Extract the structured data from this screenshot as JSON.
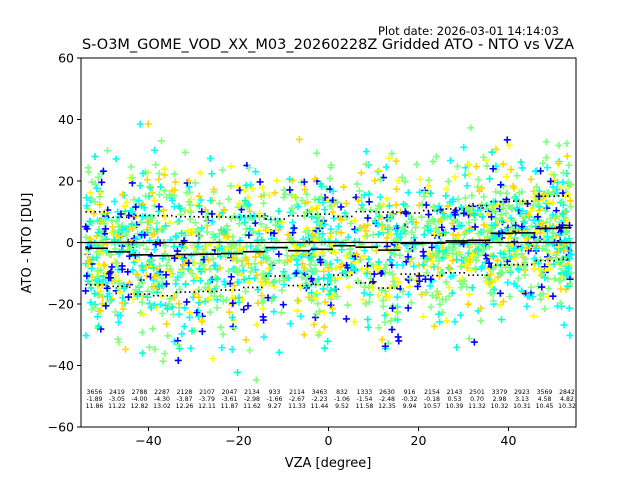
{
  "chart_data": {
    "type": "scatter",
    "title": "S-O3M_GOME_VOD_XX_M03_20260228Z Gridded ATO - NTO vs VZA",
    "plot_date": "Plot date: 2026-03-01 14:14:03",
    "xlabel": "VZA [degree]",
    "ylabel": "ATO - NTO [DU]",
    "xlim": [
      -55,
      55
    ],
    "ylim": [
      -60,
      60
    ],
    "xticks": [
      -40,
      -20,
      0,
      20,
      40
    ],
    "yticks": [
      -60,
      -40,
      -20,
      0,
      20,
      40,
      60
    ],
    "xtick_labels": [
      "−40",
      "−20",
      "0",
      "20",
      "40"
    ],
    "ytick_labels": [
      "−60",
      "−40",
      "−20",
      "0",
      "20",
      "40",
      "60"
    ],
    "zero_line": 0,
    "bin_edges": [
      -54,
      -49,
      -44,
      -39,
      -34,
      -29,
      -24,
      -19,
      -14,
      -9,
      -4,
      1,
      6,
      11,
      16,
      21,
      26,
      31,
      36,
      41,
      46,
      51,
      54
    ],
    "bins": [
      {
        "center": -52,
        "count": "3656",
        "mean": "-1.89",
        "std": "11.86"
      },
      {
        "center": -47,
        "count": "2419",
        "mean": "-3.05",
        "std": "11.22"
      },
      {
        "center": -42,
        "count": "2788",
        "mean": "-4.00",
        "std": "12.82"
      },
      {
        "center": -37,
        "count": "2287",
        "mean": "-4.30",
        "std": "13.02"
      },
      {
        "center": -32,
        "count": "2128",
        "mean": "-3.87",
        "std": "12.26"
      },
      {
        "center": -27,
        "count": "2107",
        "mean": "-3.79",
        "std": "12.11"
      },
      {
        "center": -22,
        "count": "2047",
        "mean": "-3.61",
        "std": "11.87"
      },
      {
        "center": -17,
        "count": "2134",
        "mean": "-2.98",
        "std": "11.62"
      },
      {
        "center": -12,
        "count": "933",
        "mean": "-1.66",
        "std": "9.27"
      },
      {
        "center": -7,
        "count": "2114",
        "mean": "-2.67",
        "std": "11.33"
      },
      {
        "center": -2,
        "count": "3463",
        "mean": "-2.23",
        "std": "11.44"
      },
      {
        "center": 3,
        "count": "832",
        "mean": "-1.06",
        "std": "9.52"
      },
      {
        "center": 8,
        "count": "1333",
        "mean": "-1.54",
        "std": "11.58"
      },
      {
        "center": 13,
        "count": "2630",
        "mean": "-2.48",
        "std": "12.35"
      },
      {
        "center": 18,
        "count": "916",
        "mean": "-0.32",
        "std": "9.94"
      },
      {
        "center": 23,
        "count": "2154",
        "mean": "-0.18",
        "std": "10.57"
      },
      {
        "center": 28,
        "count": "2143",
        "mean": "0.53",
        "std": "10.39"
      },
      {
        "center": 33,
        "count": "2501",
        "mean": "0.70",
        "std": "11.32"
      },
      {
        "center": 38,
        "count": "3379",
        "mean": "2.98",
        "std": "10.32"
      },
      {
        "center": 43,
        "count": "2923",
        "mean": "3.13",
        "std": "10.31"
      },
      {
        "center": 48,
        "count": "3569",
        "mean": "4.58",
        "std": "10.45"
      },
      {
        "center": 53,
        "count": "2842",
        "mean": "4.82",
        "std": "10.32"
      }
    ],
    "marker_colors": [
      "#80ff80",
      "#00ffff",
      "#ffd700",
      "#ffff00",
      "#0000ff",
      "#00ffcc"
    ],
    "line_color": "#000000"
  }
}
